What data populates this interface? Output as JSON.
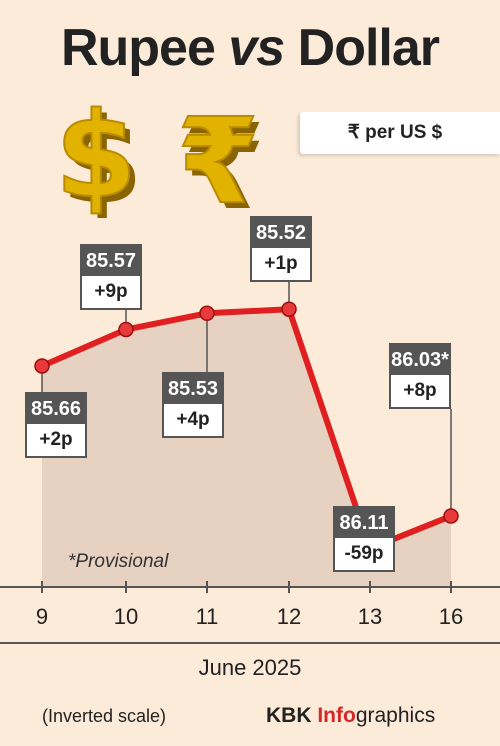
{
  "title_part1": "Rupee ",
  "title_part2": "vs",
  "title_part3": " Dollar",
  "unit_label": "₹ per US $",
  "provisional_note": "*Provisional",
  "footnote": "(Inverted scale)",
  "brand": {
    "part1": "KBK ",
    "part2": "Info",
    "part3": "graphics"
  },
  "colors": {
    "background": "#fdebd9",
    "line": "#e02020",
    "box_header": "#555555",
    "brand_accent": "#d62828",
    "gold": "#e2b200"
  },
  "icons": [
    "dollar-sign-icon",
    "rupee-sign-icon"
  ],
  "chart_data": {
    "type": "line",
    "scale": "inverted",
    "xlabel": "June 2025",
    "categories": [
      "9",
      "10",
      "11",
      "12",
      "13",
      "16"
    ],
    "values": [
      85.66,
      85.57,
      85.53,
      85.52,
      86.11,
      86.03
    ],
    "labels": [
      "85.66",
      "85.57",
      "85.53",
      "85.52",
      "86.11",
      "86.03*"
    ],
    "changes": [
      "+2p",
      "+9p",
      "+4p",
      "+1p",
      "-59p",
      "+8p"
    ],
    "ylim": [
      85.3,
      86.2
    ]
  }
}
